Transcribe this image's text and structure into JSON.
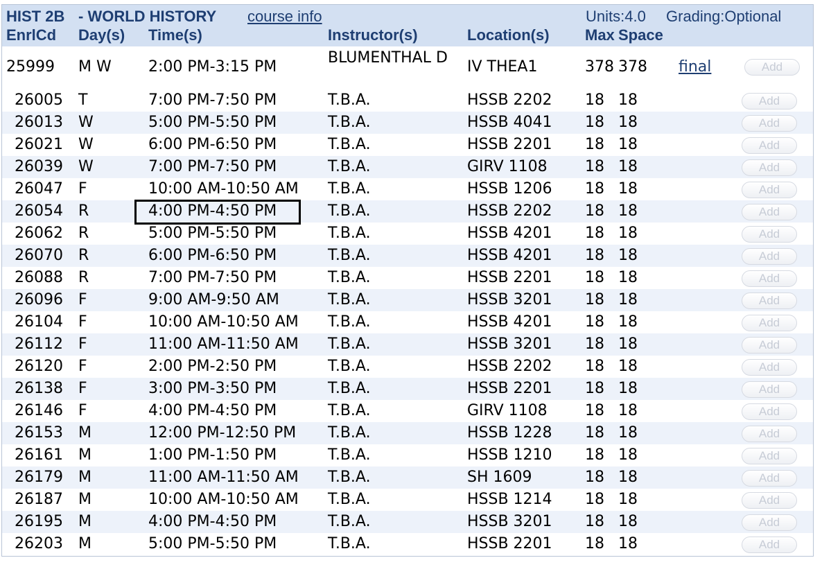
{
  "course": {
    "code": "HIST 2B",
    "title": "- WORLD HISTORY",
    "info_link": "course info",
    "units": "Units:4.0",
    "grading": "Grading:Optional"
  },
  "columns": {
    "enrlcd": "EnrlCd",
    "days": "Day(s)",
    "times": "Time(s)",
    "instructor": "Instructor(s)",
    "location": "Location(s)",
    "max": "Max",
    "space": "Space"
  },
  "lecture": {
    "enrlcd": "25999",
    "days": "M W",
    "time": "2:00 PM-3:15 PM",
    "instructor": "BLUMENTHAL D",
    "location": "IV THEA1",
    "max": "378",
    "space": "378",
    "final_link": "final",
    "add_label": "Add"
  },
  "sections": [
    {
      "enrlcd": "26005",
      "days": "T",
      "time": "7:00 PM-7:50 PM",
      "instructor": "T.B.A.",
      "location": "HSSB 2202",
      "max": "18",
      "space": "18",
      "add_label": "Add"
    },
    {
      "enrlcd": "26013",
      "days": "W",
      "time": "5:00 PM-5:50 PM",
      "instructor": "T.B.A.",
      "location": "HSSB 4041",
      "max": "18",
      "space": "18",
      "add_label": "Add"
    },
    {
      "enrlcd": "26021",
      "days": "W",
      "time": "6:00 PM-6:50 PM",
      "instructor": "T.B.A.",
      "location": "HSSB 2201",
      "max": "18",
      "space": "18",
      "add_label": "Add"
    },
    {
      "enrlcd": "26039",
      "days": "W",
      "time": "7:00 PM-7:50 PM",
      "instructor": "T.B.A.",
      "location": "GIRV 1108",
      "max": "18",
      "space": "18",
      "add_label": "Add"
    },
    {
      "enrlcd": "26047",
      "days": "F",
      "time": "10:00 AM-10:50 AM",
      "instructor": "T.B.A.",
      "location": "HSSB 1206",
      "max": "18",
      "space": "18",
      "add_label": "Add"
    },
    {
      "enrlcd": "26054",
      "days": "R",
      "time": "4:00 PM-4:50 PM",
      "instructor": "T.B.A.",
      "location": "HSSB 2202",
      "max": "18",
      "space": "18",
      "add_label": "Add"
    },
    {
      "enrlcd": "26062",
      "days": "R",
      "time": "5:00 PM-5:50 PM",
      "instructor": "T.B.A.",
      "location": "HSSB 4201",
      "max": "18",
      "space": "18",
      "add_label": "Add"
    },
    {
      "enrlcd": "26070",
      "days": "R",
      "time": "6:00 PM-6:50 PM",
      "instructor": "T.B.A.",
      "location": "HSSB 4201",
      "max": "18",
      "space": "18",
      "add_label": "Add"
    },
    {
      "enrlcd": "26088",
      "days": "R",
      "time": "7:00 PM-7:50 PM",
      "instructor": "T.B.A.",
      "location": "HSSB 2201",
      "max": "18",
      "space": "18",
      "add_label": "Add"
    },
    {
      "enrlcd": "26096",
      "days": "F",
      "time": "9:00 AM-9:50 AM",
      "instructor": "T.B.A.",
      "location": "HSSB 3201",
      "max": "18",
      "space": "18",
      "add_label": "Add"
    },
    {
      "enrlcd": "26104",
      "days": "F",
      "time": "10:00 AM-10:50 AM",
      "instructor": "T.B.A.",
      "location": "HSSB 4201",
      "max": "18",
      "space": "18",
      "add_label": "Add"
    },
    {
      "enrlcd": "26112",
      "days": "F",
      "time": "11:00 AM-11:50 AM",
      "instructor": "T.B.A.",
      "location": "HSSB 3201",
      "max": "18",
      "space": "18",
      "add_label": "Add"
    },
    {
      "enrlcd": "26120",
      "days": "F",
      "time": "2:00 PM-2:50 PM",
      "instructor": "T.B.A.",
      "location": "HSSB 2202",
      "max": "18",
      "space": "18",
      "add_label": "Add"
    },
    {
      "enrlcd": "26138",
      "days": "F",
      "time": "3:00 PM-3:50 PM",
      "instructor": "T.B.A.",
      "location": "HSSB 2201",
      "max": "18",
      "space": "18",
      "add_label": "Add"
    },
    {
      "enrlcd": "26146",
      "days": "F",
      "time": "4:00 PM-4:50 PM",
      "instructor": "T.B.A.",
      "location": "GIRV 1108",
      "max": "18",
      "space": "18",
      "add_label": "Add"
    },
    {
      "enrlcd": "26153",
      "days": "M",
      "time": "12:00 PM-12:50 PM",
      "instructor": "T.B.A.",
      "location": "HSSB 1228",
      "max": "18",
      "space": "18",
      "add_label": "Add"
    },
    {
      "enrlcd": "26161",
      "days": "M",
      "time": "1:00 PM-1:50 PM",
      "instructor": "T.B.A.",
      "location": "HSSB 1210",
      "max": "18",
      "space": "18",
      "add_label": "Add"
    },
    {
      "enrlcd": "26179",
      "days": "M",
      "time": "11:00 AM-11:50 AM",
      "instructor": "T.B.A.",
      "location": "SH 1609",
      "max": "18",
      "space": "18",
      "add_label": "Add"
    },
    {
      "enrlcd": "26187",
      "days": "M",
      "time": "10:00 AM-10:50 AM",
      "instructor": "T.B.A.",
      "location": "HSSB 1214",
      "max": "18",
      "space": "18",
      "add_label": "Add"
    },
    {
      "enrlcd": "26195",
      "days": "M",
      "time": "4:00 PM-4:50 PM",
      "instructor": "T.B.A.",
      "location": "HSSB 3201",
      "max": "18",
      "space": "18",
      "add_label": "Add"
    },
    {
      "enrlcd": "26203",
      "days": "M",
      "time": "5:00 PM-5:50 PM",
      "instructor": "T.B.A.",
      "location": "HSSB 2201",
      "max": "18",
      "space": "18",
      "add_label": "Add"
    }
  ],
  "highlighted_section_index": 5
}
